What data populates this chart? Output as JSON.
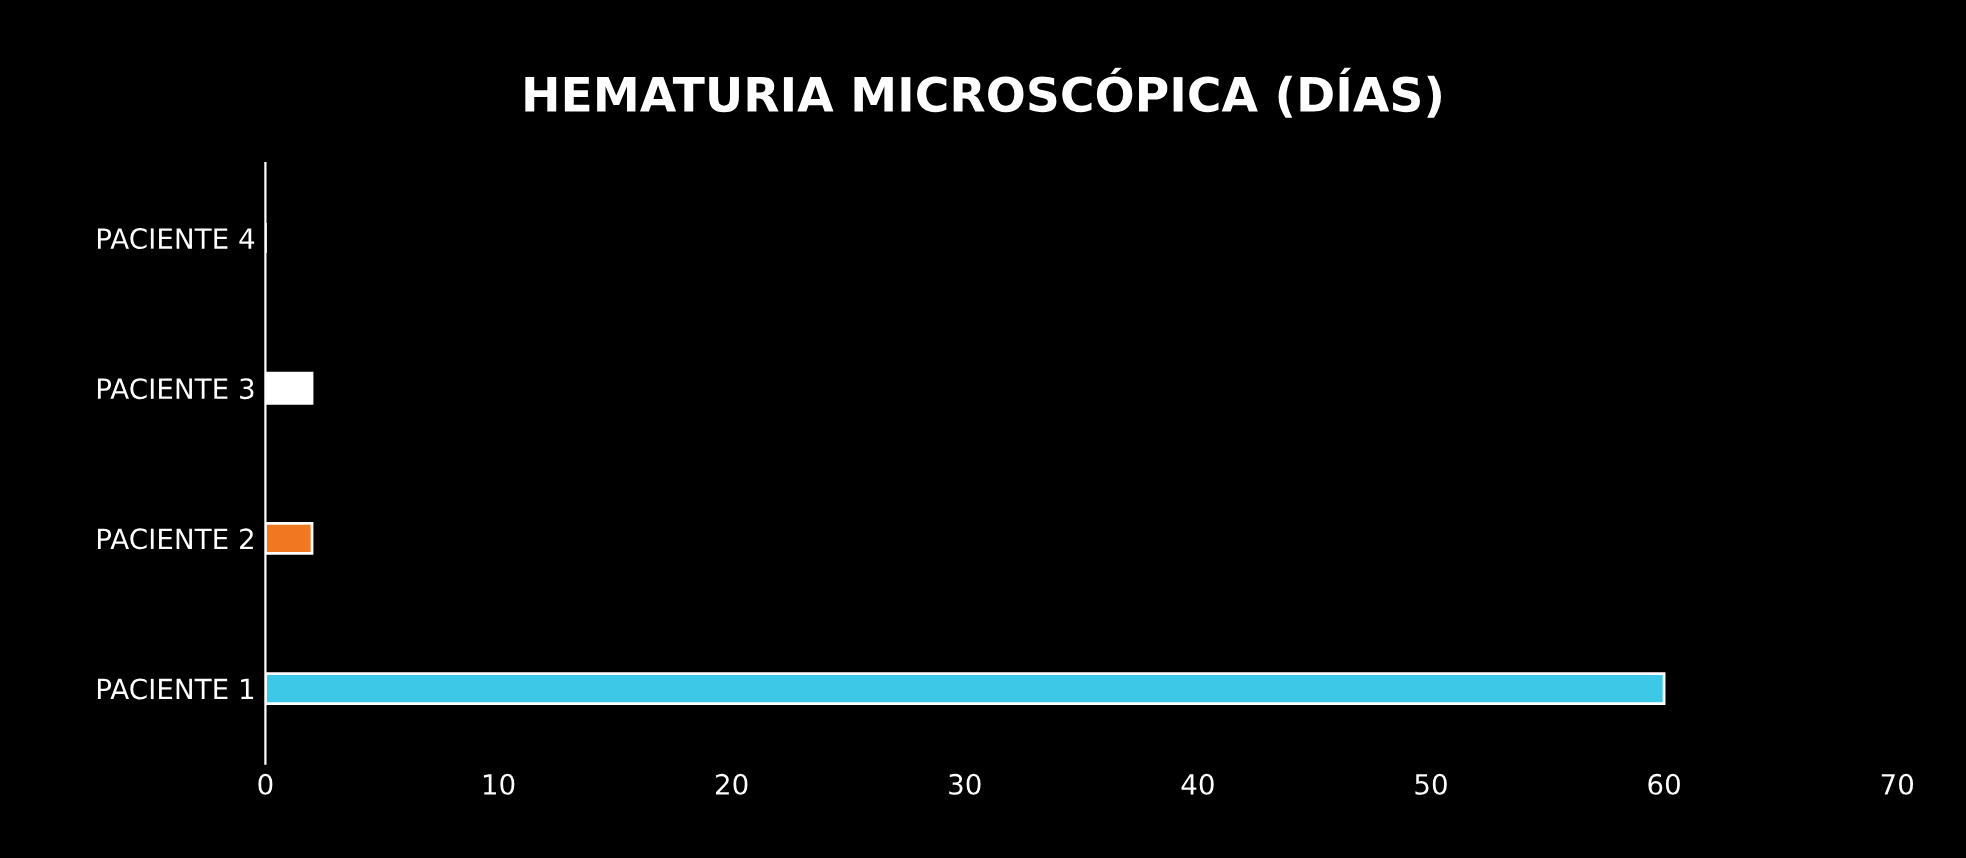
{
  "chart_data": {
    "type": "bar",
    "orientation": "horizontal",
    "title": "HEMATURIA MICROSCÓPICA (DÍAS)",
    "categories": [
      "PACIENTE 4",
      "PACIENTE 3",
      "PACIENTE 2",
      "PACIENTE 1"
    ],
    "values": [
      0,
      2,
      2,
      60
    ],
    "colors": [
      "#ffffff",
      "#ffffff",
      "#f07820",
      "#3cc8e6"
    ],
    "xlim": [
      0,
      70
    ],
    "xticks": [
      0,
      10,
      20,
      30,
      40,
      50,
      60,
      70
    ],
    "grid": false,
    "legend": false
  }
}
